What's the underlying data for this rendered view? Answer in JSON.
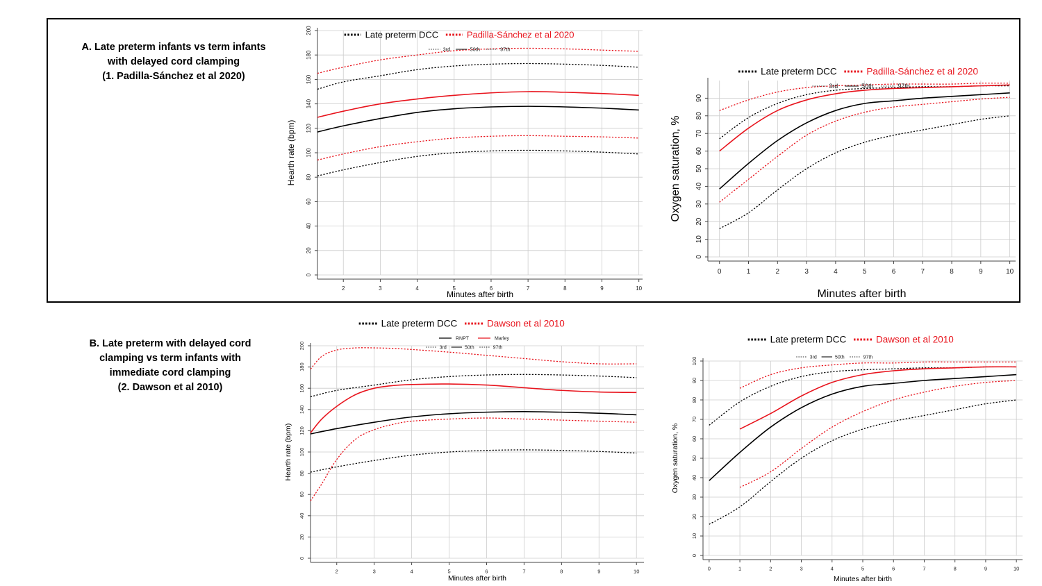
{
  "sections": {
    "a_title": "A.   Late preterm infants vs term infants\nwith delayed cord clamping\n(1. Padilla-Sánchez et al 2020)",
    "b_title": "B. Late preterm with delayed cord\nclamping vs term infants with\nimmediate cord clamping\n(2. Dawson et al 2010)"
  },
  "colors": {
    "black": "#000000",
    "red": "#e8141d",
    "grid": "#cccccc"
  },
  "chart_data": [
    {
      "id": "a-hr",
      "type": "line",
      "panel": "A",
      "xlabel": "Minutes after birth",
      "ylabel": "Hearth rate (bpm)",
      "xlim": [
        1.3,
        10.1
      ],
      "ylim": [
        0,
        200
      ],
      "xticks": [
        2,
        3,
        4,
        5,
        6,
        7,
        8,
        9,
        10
      ],
      "yticks": [
        0,
        20,
        40,
        60,
        80,
        100,
        120,
        140,
        160,
        180,
        200
      ],
      "grid": true,
      "legend_top": [
        {
          "text": "Late preterm DCC",
          "color": "#000000"
        },
        {
          "text": "Padilla-Sánchez et al  2020",
          "color": "#e8141d"
        }
      ],
      "legend_sub": [
        "3rd",
        "50th",
        "97th"
      ],
      "series": [
        {
          "group": "Late preterm DCC",
          "percentile": "3rd",
          "color": "#000000",
          "dash": true,
          "x": [
            1.3,
            2,
            3,
            4,
            5,
            6,
            7,
            8,
            9,
            10
          ],
          "y": [
            81,
            86,
            92,
            97,
            100,
            101.5,
            102,
            101.5,
            100.5,
            99
          ]
        },
        {
          "group": "Late preterm DCC",
          "percentile": "50th",
          "color": "#000000",
          "dash": false,
          "x": [
            1.3,
            2,
            3,
            4,
            5,
            6,
            7,
            8,
            9,
            10
          ],
          "y": [
            117,
            122,
            128,
            133,
            136,
            137.5,
            138,
            137.5,
            136.5,
            135
          ]
        },
        {
          "group": "Late preterm DCC",
          "percentile": "97th",
          "color": "#000000",
          "dash": true,
          "x": [
            1.3,
            2,
            3,
            4,
            5,
            6,
            7,
            8,
            9,
            10
          ],
          "y": [
            152,
            158,
            163,
            168,
            171,
            172.5,
            173,
            172.5,
            171.5,
            170
          ]
        },
        {
          "group": "Padilla-Sánchez et al 2020",
          "percentile": "3rd",
          "color": "#e8141d",
          "dash": true,
          "x": [
            1.3,
            2,
            3,
            4,
            5,
            6,
            7,
            8,
            9,
            10
          ],
          "y": [
            94,
            99,
            105,
            109,
            112,
            113.5,
            114,
            113.5,
            113,
            112
          ]
        },
        {
          "group": "Padilla-Sánchez et al 2020",
          "percentile": "50th",
          "color": "#e8141d",
          "dash": false,
          "x": [
            1.3,
            2,
            3,
            4,
            5,
            6,
            7,
            8,
            9,
            10
          ],
          "y": [
            129,
            134,
            140,
            144,
            147,
            149,
            150,
            149.5,
            148.5,
            147
          ]
        },
        {
          "group": "Padilla-Sánchez et al 2020",
          "percentile": "97th",
          "color": "#e8141d",
          "dash": true,
          "x": [
            1.3,
            2,
            3,
            4,
            5,
            6,
            7,
            8,
            9,
            10
          ],
          "y": [
            165,
            170,
            176,
            180,
            183.5,
            185,
            185.5,
            185,
            184,
            183
          ]
        }
      ]
    },
    {
      "id": "a-spo2",
      "type": "line",
      "panel": "A",
      "xlabel": "Minutes after birth",
      "ylabel": "Oxygen saturation, %",
      "xlim": [
        -0.4,
        10.2
      ],
      "ylim": [
        0,
        100
      ],
      "xticks": [
        0,
        1,
        2,
        3,
        4,
        5,
        6,
        7,
        8,
        9,
        10
      ],
      "yticks": [
        0,
        10,
        20,
        30,
        40,
        50,
        60,
        70,
        80,
        90
      ],
      "grid": true,
      "legend_top": [
        {
          "text": "Late preterm DCC",
          "color": "#000000"
        },
        {
          "text": "Padilla-Sánchez et al  2020",
          "color": "#e8141d"
        }
      ],
      "legend_sub": [
        "3rd",
        "50th",
        "97th"
      ],
      "series": [
        {
          "group": "Late preterm DCC",
          "percentile": "3rd",
          "color": "#000000",
          "dash": true,
          "x": [
            0,
            1,
            2,
            3,
            4,
            5,
            6,
            7,
            8,
            9,
            10
          ],
          "y": [
            16,
            25,
            38,
            50,
            59,
            65,
            69,
            72,
            75,
            78,
            80
          ]
        },
        {
          "group": "Late preterm DCC",
          "percentile": "50th",
          "color": "#000000",
          "dash": false,
          "x": [
            0,
            1,
            2,
            3,
            4,
            5,
            6,
            7,
            8,
            9,
            10
          ],
          "y": [
            38.5,
            53,
            66,
            76,
            83,
            87,
            88.5,
            90,
            91,
            92,
            93
          ]
        },
        {
          "group": "Late preterm DCC",
          "percentile": "97th",
          "color": "#000000",
          "dash": true,
          "x": [
            0,
            1,
            2,
            3,
            4,
            5,
            6,
            7,
            8,
            9,
            10
          ],
          "y": [
            67,
            79,
            87,
            92,
            94.5,
            95.5,
            96,
            96.5,
            96.5,
            97,
            97
          ]
        },
        {
          "group": "Padilla-Sánchez et al 2020",
          "percentile": "3rd",
          "color": "#e8141d",
          "dash": true,
          "x": [
            0,
            1,
            2,
            3,
            4,
            5,
            6,
            7,
            8,
            9,
            10
          ],
          "y": [
            31,
            44,
            57,
            69,
            77,
            82,
            85,
            86.5,
            88,
            89.5,
            90.5
          ]
        },
        {
          "group": "Padilla-Sánchez et al 2020",
          "percentile": "50th",
          "color": "#e8141d",
          "dash": false,
          "x": [
            0,
            1,
            2,
            3,
            4,
            5,
            6,
            7,
            8,
            9,
            10
          ],
          "y": [
            60,
            73,
            83,
            89,
            92.5,
            94.5,
            95.5,
            96,
            96.5,
            97,
            97.5
          ]
        },
        {
          "group": "Padilla-Sánchez et al 2020",
          "percentile": "97th",
          "color": "#e8141d",
          "dash": true,
          "x": [
            0,
            1,
            2,
            3,
            4,
            5,
            6,
            7,
            8,
            9,
            10
          ],
          "y": [
            83,
            89,
            93.5,
            96,
            97,
            97.5,
            98,
            98,
            98,
            98.5,
            98.5
          ]
        }
      ]
    },
    {
      "id": "b-hr",
      "type": "line",
      "panel": "B",
      "xlabel": "Minutes after birth",
      "ylabel": "Hearth rate (bpm)",
      "xlim": [
        1.3,
        10.2
      ],
      "ylim": [
        0,
        200
      ],
      "xticks": [
        2,
        3,
        4,
        5,
        6,
        7,
        8,
        9,
        10
      ],
      "yticks": [
        0,
        20,
        40,
        60,
        80,
        100,
        120,
        140,
        160,
        180,
        200
      ],
      "grid": true,
      "legend_top": [
        {
          "text": "Late preterm DCC",
          "color": "#000000"
        },
        {
          "text": "Dawson et al  2010",
          "color": "#e8141d"
        }
      ],
      "legend_row1": [
        {
          "text": "RNPT",
          "color": "#000000"
        },
        {
          "text": "Marley",
          "color": "#e8141d"
        }
      ],
      "legend_sub": [
        "3rd",
        "50th",
        "97th"
      ],
      "series": [
        {
          "group": "Late preterm DCC",
          "percentile": "3rd",
          "color": "#000000",
          "dash": true,
          "x": [
            1.3,
            2,
            3,
            4,
            5,
            6,
            7,
            8,
            9,
            10
          ],
          "y": [
            81,
            86,
            92,
            97,
            100,
            101.5,
            102,
            101.5,
            100.5,
            99
          ]
        },
        {
          "group": "Late preterm DCC",
          "percentile": "50th",
          "color": "#000000",
          "dash": false,
          "x": [
            1.3,
            2,
            3,
            4,
            5,
            6,
            7,
            8,
            9,
            10
          ],
          "y": [
            117,
            122,
            128,
            133,
            136,
            137.5,
            138,
            137.5,
            136.5,
            135
          ]
        },
        {
          "group": "Late preterm DCC",
          "percentile": "97th",
          "color": "#000000",
          "dash": true,
          "x": [
            1.3,
            2,
            3,
            4,
            5,
            6,
            7,
            8,
            9,
            10
          ],
          "y": [
            152,
            158,
            163,
            168,
            171,
            172.5,
            173,
            172.5,
            171.5,
            170
          ]
        },
        {
          "group": "Dawson et al 2010",
          "percentile": "3rd",
          "color": "#e8141d",
          "dash": true,
          "x": [
            1.3,
            1.6,
            2,
            2.5,
            3,
            3.5,
            4,
            5,
            6,
            7,
            8,
            9,
            10
          ],
          "y": [
            54,
            70,
            93,
            112,
            121,
            126,
            129,
            131,
            132,
            131,
            130,
            129,
            128
          ]
        },
        {
          "group": "Dawson et al 2010",
          "percentile": "50th",
          "color": "#e8141d",
          "dash": false,
          "x": [
            1.3,
            1.6,
            2,
            2.5,
            3,
            3.5,
            4,
            5,
            6,
            7,
            8,
            9,
            10
          ],
          "y": [
            118,
            131,
            143,
            154,
            160,
            162.5,
            163.5,
            164,
            163,
            160.5,
            158,
            156.5,
            156
          ]
        },
        {
          "group": "Dawson et al 2010",
          "percentile": "97th",
          "color": "#e8141d",
          "dash": true,
          "x": [
            1.3,
            1.6,
            2,
            2.5,
            3,
            3.5,
            4,
            5,
            6,
            7,
            8,
            9,
            10
          ],
          "y": [
            178,
            190,
            196,
            198,
            198,
            197.5,
            196.5,
            194,
            191,
            188,
            185,
            183,
            183
          ]
        }
      ]
    },
    {
      "id": "b-spo2",
      "type": "line",
      "panel": "B",
      "xlabel": "Minutes after birth",
      "ylabel": "Oxygen saturation, %",
      "xlim": [
        -0.2,
        10.2
      ],
      "ylim": [
        0,
        100
      ],
      "xticks": [
        0,
        1,
        2,
        3,
        4,
        5,
        6,
        7,
        8,
        9,
        10
      ],
      "yticks": [
        0,
        10,
        20,
        30,
        40,
        50,
        60,
        70,
        80,
        90,
        100
      ],
      "grid": true,
      "legend_top": [
        {
          "text": "Late preterm DCC",
          "color": "#000000"
        },
        {
          "text": "Dawson et al  2010",
          "color": "#e8141d"
        }
      ],
      "legend_sub": [
        "3rd",
        "50th",
        "97th"
      ],
      "series": [
        {
          "group": "Late preterm DCC",
          "percentile": "3rd",
          "color": "#000000",
          "dash": true,
          "x": [
            0,
            1,
            2,
            3,
            4,
            5,
            6,
            7,
            8,
            9,
            10
          ],
          "y": [
            16,
            25,
            38,
            50,
            59,
            65,
            69,
            72,
            75,
            78,
            80
          ]
        },
        {
          "group": "Late preterm DCC",
          "percentile": "50th",
          "color": "#000000",
          "dash": false,
          "x": [
            0,
            1,
            2,
            3,
            4,
            5,
            6,
            7,
            8,
            9,
            10
          ],
          "y": [
            38.5,
            53,
            66,
            76,
            83,
            87,
            88.5,
            90,
            91,
            92,
            93
          ]
        },
        {
          "group": "Late preterm DCC",
          "percentile": "97th",
          "color": "#000000",
          "dash": true,
          "x": [
            0,
            1,
            2,
            3,
            4,
            5,
            6,
            7,
            8,
            9,
            10
          ],
          "y": [
            67,
            79,
            87,
            92,
            94.5,
            95.5,
            96,
            96.5,
            96.5,
            97,
            97
          ]
        },
        {
          "group": "Dawson et al 2010",
          "percentile": "3rd",
          "color": "#e8141d",
          "dash": true,
          "x": [
            1,
            2,
            3,
            4,
            5,
            6,
            7,
            8,
            9,
            10
          ],
          "y": [
            35,
            43,
            55,
            66,
            74,
            80,
            84,
            87,
            89,
            90
          ]
        },
        {
          "group": "Dawson et al 2010",
          "percentile": "50th",
          "color": "#e8141d",
          "dash": false,
          "x": [
            1,
            2,
            3,
            4,
            5,
            6,
            7,
            8,
            9,
            10
          ],
          "y": [
            65,
            73,
            82,
            89,
            93,
            95,
            96,
            96.5,
            97,
            97
          ]
        },
        {
          "group": "Dawson et al 2010",
          "percentile": "97th",
          "color": "#e8141d",
          "dash": true,
          "x": [
            1,
            2,
            3,
            4,
            5,
            6,
            7,
            8,
            9,
            10
          ],
          "y": [
            86,
            93,
            96.5,
            98,
            99,
            99,
            99.5,
            99.5,
            99.5,
            99.5
          ]
        }
      ]
    }
  ]
}
